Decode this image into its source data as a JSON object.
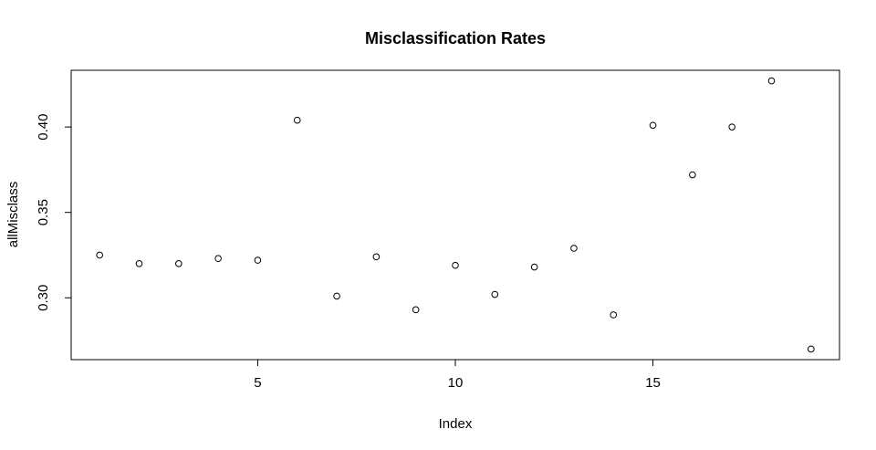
{
  "chart_data": {
    "type": "scatter",
    "title": "Misclassification Rates",
    "xlabel": "Index",
    "ylabel": "allMisclass",
    "x": [
      1,
      2,
      3,
      4,
      5,
      6,
      7,
      8,
      9,
      10,
      11,
      12,
      13,
      14,
      15,
      16,
      17,
      18,
      19
    ],
    "y": [
      0.325,
      0.32,
      0.32,
      0.323,
      0.322,
      0.404,
      0.301,
      0.324,
      0.293,
      0.319,
      0.302,
      0.318,
      0.329,
      0.29,
      0.401,
      0.372,
      0.4,
      0.427,
      0.27
    ],
    "x_ticks": [
      5,
      10,
      15
    ],
    "x_tick_labels": [
      "5",
      "10",
      "15"
    ],
    "y_ticks": [
      0.3,
      0.35,
      0.4
    ],
    "y_tick_labels": [
      "0.30",
      "0.35",
      "0.40"
    ],
    "xlim": [
      0.28,
      19.72
    ],
    "ylim": [
      0.2638,
      0.4332
    ],
    "marker": "open-circle",
    "grid": false,
    "legend": "none",
    "colors": {
      "marker": "#000000",
      "axis": "#000000",
      "background": "#ffffff"
    }
  }
}
